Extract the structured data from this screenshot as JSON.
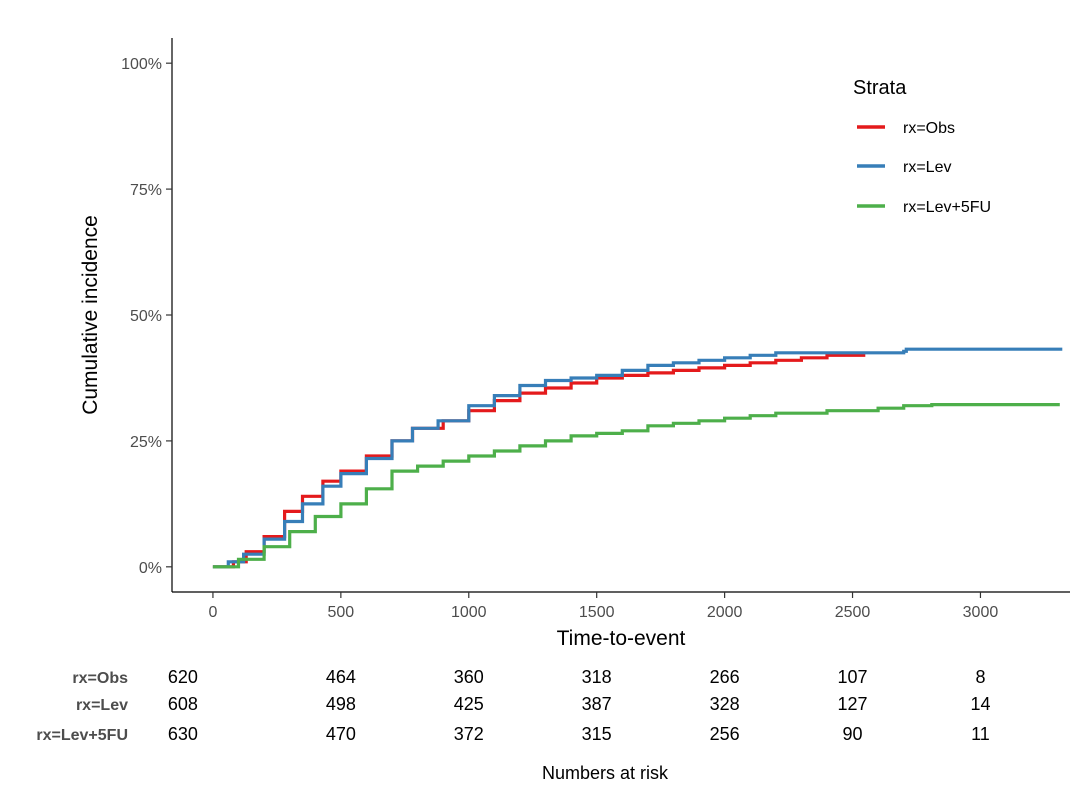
{
  "chart_data": {
    "type": "line",
    "ylabel": "Cumulative incidence",
    "xlabel": "Time-to-event",
    "x_ticks": [
      0,
      500,
      1000,
      1500,
      2000,
      2500,
      3000
    ],
    "y_ticks": [
      0,
      0.25,
      0.5,
      0.75,
      1.0
    ],
    "y_tick_labels": [
      "0%",
      "25%",
      "50%",
      "75%",
      "100%"
    ],
    "xlim": [
      -160,
      3350
    ],
    "ylim": [
      -0.05,
      1.05
    ],
    "legend": {
      "title": "Strata",
      "position": "top-right",
      "entries": [
        "rx=Obs",
        "rx=Lev",
        "rx=Lev+5FU"
      ]
    },
    "series": [
      {
        "name": "rx=Obs",
        "color": "#E41A1C",
        "points": [
          [
            0,
            0
          ],
          [
            80,
            0.01
          ],
          [
            130,
            0.03
          ],
          [
            200,
            0.06
          ],
          [
            280,
            0.11
          ],
          [
            350,
            0.14
          ],
          [
            430,
            0.17
          ],
          [
            500,
            0.19
          ],
          [
            600,
            0.22
          ],
          [
            700,
            0.25
          ],
          [
            780,
            0.275
          ],
          [
            900,
            0.29
          ],
          [
            1000,
            0.31
          ],
          [
            1100,
            0.33
          ],
          [
            1200,
            0.345
          ],
          [
            1300,
            0.355
          ],
          [
            1400,
            0.365
          ],
          [
            1500,
            0.375
          ],
          [
            1600,
            0.38
          ],
          [
            1700,
            0.385
          ],
          [
            1800,
            0.39
          ],
          [
            1900,
            0.395
          ],
          [
            2000,
            0.4
          ],
          [
            2100,
            0.405
          ],
          [
            2200,
            0.41
          ],
          [
            2300,
            0.415
          ],
          [
            2400,
            0.42
          ],
          [
            2550,
            0.42
          ]
        ]
      },
      {
        "name": "rx=Lev",
        "color": "#377EB8",
        "points": [
          [
            0,
            0
          ],
          [
            60,
            0.01
          ],
          [
            120,
            0.025
          ],
          [
            200,
            0.055
          ],
          [
            280,
            0.09
          ],
          [
            350,
            0.125
          ],
          [
            430,
            0.16
          ],
          [
            500,
            0.185
          ],
          [
            600,
            0.215
          ],
          [
            700,
            0.25
          ],
          [
            780,
            0.275
          ],
          [
            880,
            0.29
          ],
          [
            1000,
            0.32
          ],
          [
            1100,
            0.34
          ],
          [
            1200,
            0.36
          ],
          [
            1300,
            0.37
          ],
          [
            1400,
            0.375
          ],
          [
            1500,
            0.38
          ],
          [
            1600,
            0.39
          ],
          [
            1700,
            0.4
          ],
          [
            1800,
            0.405
          ],
          [
            1900,
            0.41
          ],
          [
            2000,
            0.415
          ],
          [
            2100,
            0.42
          ],
          [
            2200,
            0.425
          ],
          [
            2400,
            0.425
          ],
          [
            2700,
            0.428
          ],
          [
            2710,
            0.432
          ],
          [
            3320,
            0.432
          ]
        ]
      },
      {
        "name": "rx=Lev+5FU",
        "color": "#4DAF4A",
        "points": [
          [
            0,
            0
          ],
          [
            100,
            0.015
          ],
          [
            200,
            0.04
          ],
          [
            300,
            0.07
          ],
          [
            400,
            0.1
          ],
          [
            500,
            0.125
          ],
          [
            600,
            0.155
          ],
          [
            700,
            0.19
          ],
          [
            800,
            0.2
          ],
          [
            900,
            0.21
          ],
          [
            1000,
            0.22
          ],
          [
            1100,
            0.23
          ],
          [
            1200,
            0.24
          ],
          [
            1300,
            0.25
          ],
          [
            1400,
            0.26
          ],
          [
            1500,
            0.265
          ],
          [
            1600,
            0.27
          ],
          [
            1700,
            0.28
          ],
          [
            1800,
            0.285
          ],
          [
            1900,
            0.29
          ],
          [
            2000,
            0.295
          ],
          [
            2100,
            0.3
          ],
          [
            2200,
            0.305
          ],
          [
            2400,
            0.31
          ],
          [
            2600,
            0.315
          ],
          [
            2700,
            0.32
          ],
          [
            2800,
            0.32
          ],
          [
            2810,
            0.322
          ],
          [
            3310,
            0.322
          ]
        ]
      }
    ],
    "risk_table": {
      "title": "Numbers at risk",
      "times": [
        0,
        500,
        1000,
        1500,
        2000,
        2500,
        3000
      ],
      "rows": [
        {
          "label": "rx=Obs",
          "values": [
            "620",
            "464",
            "360",
            "318",
            "266",
            "107",
            "8"
          ]
        },
        {
          "label": "rx=Lev",
          "values": [
            "608",
            "498",
            "425",
            "387",
            "328",
            "127",
            "14"
          ]
        },
        {
          "label": "rx=Lev+5FU",
          "values": [
            "630",
            "470",
            "372",
            "315",
            "256",
            "90",
            "11"
          ]
        }
      ]
    }
  }
}
